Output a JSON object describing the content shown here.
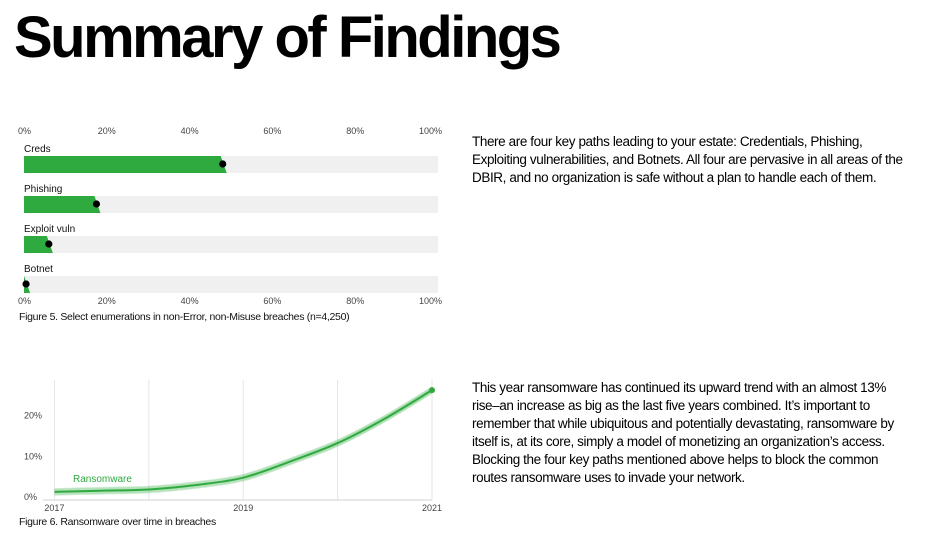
{
  "page": {
    "title": "Summary of Findings",
    "accent_color": "#2eaa3f",
    "track_color": "#f0f0f0"
  },
  "figure5": {
    "caption": "Figure 5. Select enumerations in non-Error, non-Misuse breaches (n=4,250)",
    "chart_data": {
      "type": "bar",
      "orientation": "horizontal",
      "categories": [
        "Creds",
        "Phishing",
        "Exploit vuln",
        "Botnet"
      ],
      "values": [
        48,
        17.5,
        6,
        0.5
      ],
      "unit": "%",
      "xlim": [
        0,
        100
      ],
      "xticks": [
        "0%",
        "20%",
        "40%",
        "60%",
        "80%",
        "100%"
      ],
      "xtick_values": [
        0,
        20,
        40,
        60,
        80,
        100
      ]
    }
  },
  "figure6": {
    "caption": "Figure 6. Ransomware over time in breaches",
    "chart_data": {
      "type": "line",
      "series": [
        {
          "name": "Ransomware",
          "x": [
            2017,
            2017.5,
            2018,
            2018.5,
            2019,
            2019.5,
            2020,
            2020.5,
            2021
          ],
          "values": [
            1.0,
            1.3,
            1.6,
            2.7,
            4.5,
            8.5,
            13.0,
            19.0,
            26.0
          ]
        }
      ],
      "xlim": [
        2016.9,
        2021
      ],
      "ylim": [
        0,
        28
      ],
      "yticks": [
        "0%",
        "10%",
        "20%"
      ],
      "ytick_values": [
        0,
        10,
        20
      ],
      "xticks": [
        "2017",
        "2019",
        "2021"
      ],
      "xtick_values": [
        2017,
        2019,
        2021
      ]
    }
  },
  "paragraphs": {
    "p1": "There are four key paths leading to your estate: Credentials, Phishing, Exploiting vulnerabilities, and Botnets. All four are pervasive in all areas of the DBIR, and no organization is safe without a plan to handle each of them.",
    "p2": "This year ransomware has continued its upward trend with an almost 13% rise–an increase as big as the last five years combined. It’s important to remember that while ubiquitous and potentially devastating, ransomware by itself is, at its core, simply a model of monetizing an organization’s access. Blocking the four key paths mentioned above helps to block the common routes ransomware uses to invade your network."
  }
}
